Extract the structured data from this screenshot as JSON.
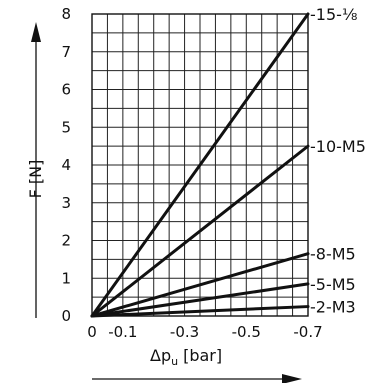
{
  "chart_data": {
    "type": "line",
    "title": "",
    "xlabel": "Δp",
    "xlabel_sub": "u",
    "xlabel_unit": "[bar]",
    "ylabel": "F [N]",
    "x_tick_labels": [
      {
        "value": 0,
        "label": "0"
      },
      {
        "value": -0.1,
        "label": "-0.1"
      },
      {
        "value": -0.3,
        "label": "-0.3"
      },
      {
        "value": -0.5,
        "label": "-0.5"
      },
      {
        "value": -0.7,
        "label": "-0.7"
      }
    ],
    "y_ticks": [
      0,
      1,
      2,
      3,
      4,
      5,
      6,
      7,
      8
    ],
    "xlim": [
      0,
      -0.7
    ],
    "ylim": [
      0,
      8
    ],
    "grid": true,
    "grid_x_step": -0.05,
    "grid_y_step": 0.5,
    "series": [
      {
        "name": "-15-⅛",
        "x": [
          0,
          -0.7
        ],
        "y": [
          0,
          8.0
        ]
      },
      {
        "name": "-10-M5",
        "x": [
          0,
          -0.7
        ],
        "y": [
          0,
          4.5
        ]
      },
      {
        "name": "-8-M5",
        "x": [
          0,
          -0.7
        ],
        "y": [
          0,
          1.65
        ]
      },
      {
        "name": "-5-M5",
        "x": [
          0,
          -0.7
        ],
        "y": [
          0,
          0.85
        ]
      },
      {
        "name": "-2-M3",
        "x": [
          0,
          -0.7
        ],
        "y": [
          0,
          0.25
        ]
      }
    ]
  }
}
